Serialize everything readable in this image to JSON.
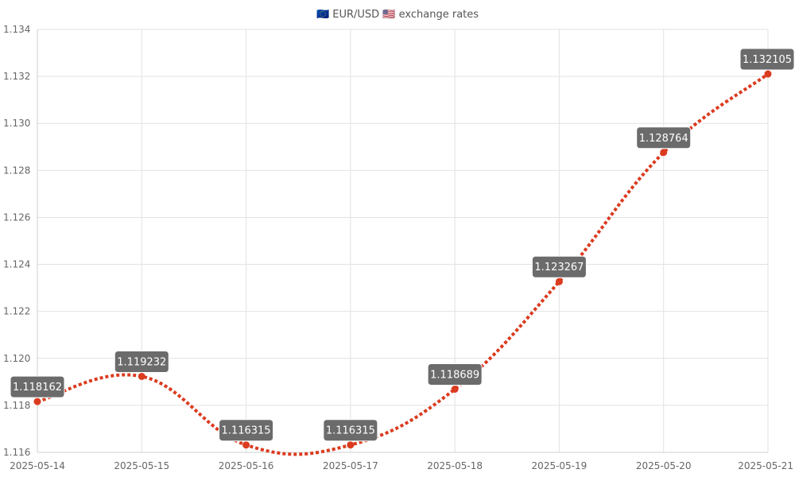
{
  "chart_data": {
    "type": "line",
    "title": "🇪🇺 EUR/USD 🇺🇸 exchange rates",
    "x": [
      "2025-05-14",
      "2025-05-15",
      "2025-05-16",
      "2025-05-17",
      "2025-05-18",
      "2025-05-19",
      "2025-05-20",
      "2025-05-21"
    ],
    "series": [
      {
        "values": [
          1.118162,
          1.119232,
          1.116315,
          1.116315,
          1.118689,
          1.123267,
          1.128764,
          1.132105
        ],
        "color": "#db3b1f"
      }
    ],
    "data_labels": [
      "1.118162",
      "1.119232",
      "1.116315",
      "1.116315",
      "1.118689",
      "1.123267",
      "1.128764",
      "1.132105"
    ],
    "y_ticks": [
      "1.116",
      "1.118",
      "1.120",
      "1.122",
      "1.124",
      "1.126",
      "1.128",
      "1.130",
      "1.132",
      "1.134"
    ],
    "ylim": [
      1.116,
      1.134
    ],
    "grid": true,
    "line_style": "dotted",
    "smooth": true,
    "label_background": "#6b6b6b"
  }
}
